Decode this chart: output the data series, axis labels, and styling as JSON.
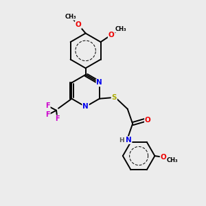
{
  "bg_color": "#ececec",
  "bond_color": "#000000",
  "bond_width": 1.4,
  "atom_colors": {
    "N": "#0000ee",
    "O": "#ee0000",
    "S": "#aaaa00",
    "F": "#cc00cc",
    "C": "#000000",
    "H": "#555555"
  },
  "font_size": 7.5,
  "fig_size": [
    3.0,
    3.0
  ],
  "dpi": 100,
  "xlim": [
    0,
    10
  ],
  "ylim": [
    0,
    10
  ]
}
